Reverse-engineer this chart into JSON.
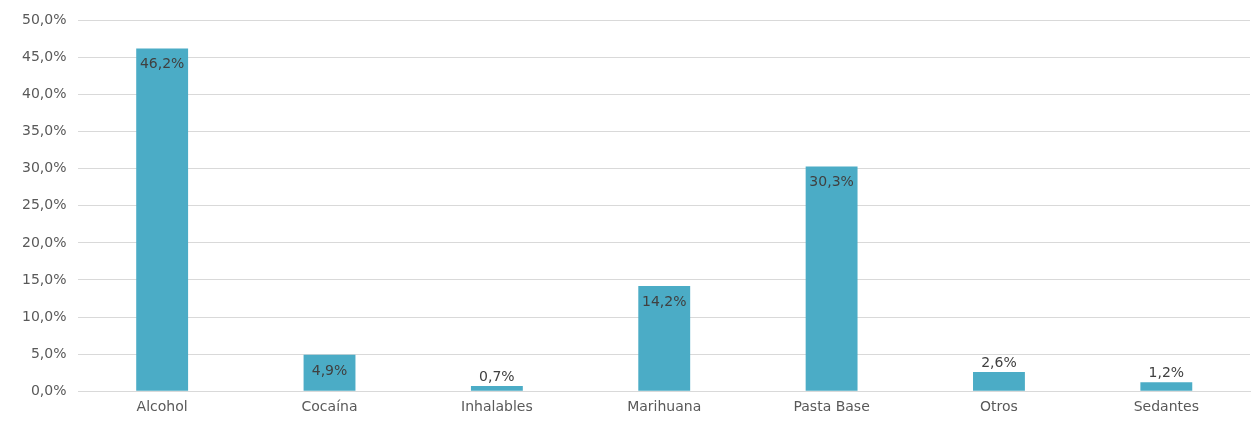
{
  "chart_data": {
    "type": "bar",
    "categories": [
      "Alcohol",
      "Cocaína",
      "Inhalables",
      "Marihuana",
      "Pasta Base",
      "Otros",
      "Sedantes"
    ],
    "values": [
      46.2,
      4.9,
      0.7,
      14.2,
      30.3,
      2.6,
      1.2
    ],
    "value_labels": [
      "46,2%",
      "4,9%",
      "0,7%",
      "14,2%",
      "30,3%",
      "2,6%",
      "1,2%"
    ],
    "color": "#4bacc6",
    "ylim": [
      0,
      50
    ],
    "yticks": [
      {
        "value": 0,
        "label": "0,0%"
      },
      {
        "value": 5,
        "label": "5,0%"
      },
      {
        "value": 10,
        "label": "10,0%"
      },
      {
        "value": 15,
        "label": "15,0%"
      },
      {
        "value": 20,
        "label": "20,0%"
      },
      {
        "value": 25,
        "label": "25,0%"
      },
      {
        "value": 30,
        "label": "30,0%"
      },
      {
        "value": 35,
        "label": "35,0%"
      },
      {
        "value": 40,
        "label": "40,0%"
      },
      {
        "value": 45,
        "label": "45,0%"
      },
      {
        "value": 50,
        "label": "50,0%"
      }
    ],
    "grid": "y"
  }
}
